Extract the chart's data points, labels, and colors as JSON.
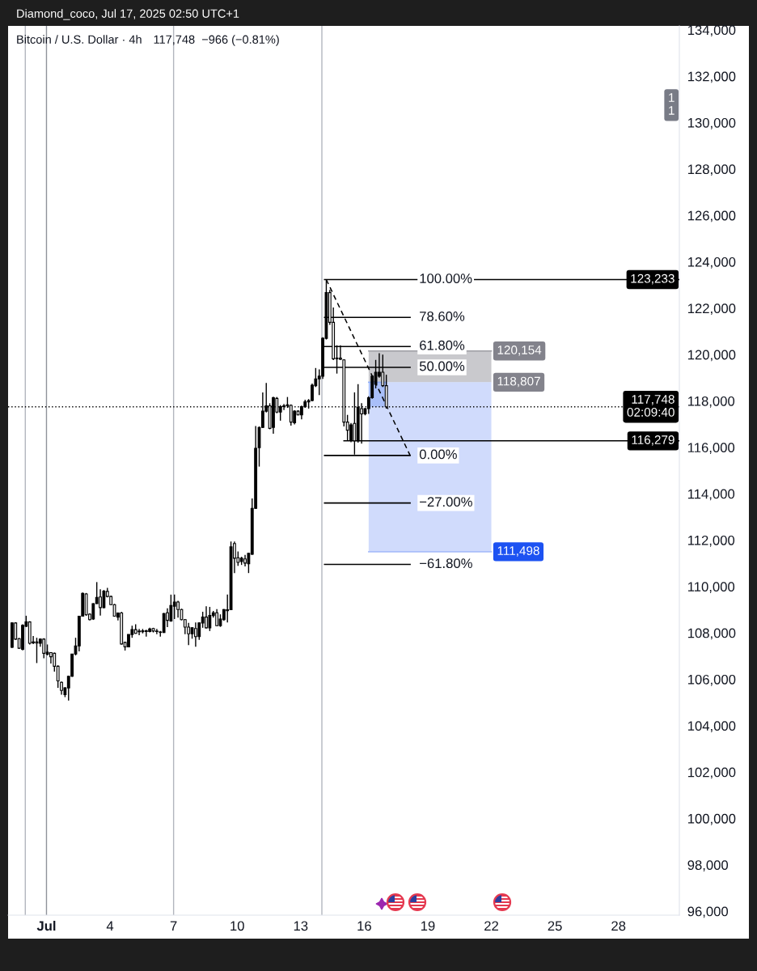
{
  "chart_data": {
    "type": "candlestick",
    "title": "Bitcoin / U.S. Dollar · 4h",
    "subtitle": "117,748  −966 (−0.81%)",
    "x": [
      "2025-06-29T09:00",
      "2025-06-29T13:00",
      "2025-06-29T17:00",
      "2025-06-29T21:00",
      "2025-06-30T01:00",
      "2025-06-30T05:00",
      "2025-06-30T09:00",
      "2025-06-30T13:00",
      "2025-06-30T17:00",
      "2025-06-30T21:00",
      "2025-07-01T01:00",
      "2025-07-01T05:00",
      "2025-07-01T09:00",
      "2025-07-01T13:00",
      "2025-07-01T17:00",
      "2025-07-01T21:00",
      "2025-07-02T01:00",
      "2025-07-02T05:00",
      "2025-07-02T09:00",
      "2025-07-02T13:00",
      "2025-07-02T17:00",
      "2025-07-02T21:00",
      "2025-07-03T01:00",
      "2025-07-03T05:00",
      "2025-07-03T09:00",
      "2025-07-03T13:00",
      "2025-07-03T17:00",
      "2025-07-03T21:00",
      "2025-07-04T01:00",
      "2025-07-04T05:00",
      "2025-07-04T09:00",
      "2025-07-04T13:00",
      "2025-07-04T17:00",
      "2025-07-04T21:00",
      "2025-07-05T01:00",
      "2025-07-05T05:00",
      "2025-07-05T09:00",
      "2025-07-05T13:00",
      "2025-07-05T17:00",
      "2025-07-05T21:00",
      "2025-07-06T01:00",
      "2025-07-06T05:00",
      "2025-07-06T09:00",
      "2025-07-06T13:00",
      "2025-07-06T17:00",
      "2025-07-06T21:00",
      "2025-07-07T01:00",
      "2025-07-07T05:00",
      "2025-07-07T09:00",
      "2025-07-07T13:00",
      "2025-07-07T17:00",
      "2025-07-07T21:00",
      "2025-07-08T01:00",
      "2025-07-08T05:00",
      "2025-07-08T09:00",
      "2025-07-08T13:00",
      "2025-07-08T17:00",
      "2025-07-08T21:00",
      "2025-07-09T01:00",
      "2025-07-09T05:00",
      "2025-07-09T09:00",
      "2025-07-09T13:00",
      "2025-07-09T17:00",
      "2025-07-09T21:00",
      "2025-07-10T01:00",
      "2025-07-10T05:00",
      "2025-07-10T09:00",
      "2025-07-10T13:00",
      "2025-07-10T17:00",
      "2025-07-10T21:00",
      "2025-07-11T01:00",
      "2025-07-11T05:00",
      "2025-07-11T09:00",
      "2025-07-11T13:00",
      "2025-07-11T17:00",
      "2025-07-11T21:00",
      "2025-07-12T01:00",
      "2025-07-12T05:00",
      "2025-07-12T09:00",
      "2025-07-12T13:00",
      "2025-07-12T17:00",
      "2025-07-12T21:00",
      "2025-07-13T01:00",
      "2025-07-13T05:00",
      "2025-07-13T09:00",
      "2025-07-13T13:00",
      "2025-07-13T17:00",
      "2025-07-13T21:00",
      "2025-07-14T01:00",
      "2025-07-14T05:00",
      "2025-07-14T09:00",
      "2025-07-14T13:00",
      "2025-07-14T17:00",
      "2025-07-14T21:00",
      "2025-07-15T01:00",
      "2025-07-15T05:00",
      "2025-07-15T09:00",
      "2025-07-15T13:00",
      "2025-07-15T17:00",
      "2025-07-15T21:00",
      "2025-07-16T01:00",
      "2025-07-16T05:00",
      "2025-07-16T09:00",
      "2025-07-16T13:00",
      "2025-07-16T17:00",
      "2025-07-16T21:00",
      "2025-07-17T01:00"
    ],
    "ohlc": [
      [
        107380,
        108450,
        107350,
        108430
      ],
      [
        108430,
        108460,
        107700,
        107730
      ],
      [
        107750,
        107780,
        107320,
        107340
      ],
      [
        107290,
        108370,
        107250,
        108330
      ],
      [
        108290,
        108740,
        108250,
        108470
      ],
      [
        108470,
        108500,
        107500,
        107550
      ],
      [
        107570,
        107870,
        107520,
        107610
      ],
      [
        107610,
        107790,
        106700,
        107560
      ],
      [
        107550,
        107760,
        107400,
        107730
      ],
      [
        107730,
        107770,
        106910,
        107120
      ],
      [
        107080,
        107500,
        107030,
        107170
      ],
      [
        107150,
        107170,
        106680,
        106970
      ],
      [
        107120,
        107150,
        106330,
        106560
      ],
      [
        106560,
        106600,
        105630,
        105930
      ],
      [
        105870,
        105900,
        105340,
        105520
      ],
      [
        105340,
        105660,
        105230,
        105630
      ],
      [
        105630,
        106160,
        105080,
        106130
      ],
      [
        106130,
        107100,
        106100,
        107090
      ],
      [
        107090,
        107790,
        107030,
        107440
      ],
      [
        107440,
        108740,
        107200,
        108720
      ],
      [
        108720,
        109740,
        108700,
        109700
      ],
      [
        109680,
        109720,
        108740,
        108780
      ],
      [
        108810,
        108840,
        108540,
        108570
      ],
      [
        108600,
        109280,
        108560,
        109260
      ],
      [
        109260,
        110190,
        109250,
        109530
      ],
      [
        109550,
        109880,
        108750,
        109090
      ],
      [
        109090,
        109850,
        109060,
        109800
      ],
      [
        109790,
        109940,
        109530,
        109570
      ],
      [
        109570,
        109600,
        109200,
        109220
      ],
      [
        109220,
        109250,
        108700,
        108720
      ],
      [
        108680,
        108880,
        108540,
        108860
      ],
      [
        108860,
        108900,
        107500,
        107520
      ],
      [
        107590,
        107620,
        107240,
        107400
      ],
      [
        107400,
        107930,
        107380,
        107930
      ],
      [
        107930,
        108310,
        107790,
        108140
      ],
      [
        108140,
        108370,
        107960,
        107980
      ],
      [
        108080,
        108170,
        107900,
        108050
      ],
      [
        108050,
        108170,
        107980,
        108090
      ],
      [
        108090,
        108140,
        107840,
        108060
      ],
      [
        108060,
        108220,
        108020,
        108170
      ],
      [
        108190,
        108220,
        108020,
        108080
      ],
      [
        108080,
        108170,
        107940,
        108060
      ],
      [
        108040,
        108080,
        107840,
        108020
      ],
      [
        108020,
        108860,
        108000,
        108830
      ],
      [
        108870,
        109060,
        108250,
        108540
      ],
      [
        108510,
        109650,
        108480,
        109180
      ],
      [
        109150,
        109650,
        108600,
        109330
      ],
      [
        109330,
        109380,
        108660,
        109010
      ],
      [
        109010,
        109040,
        108540,
        108570
      ],
      [
        108570,
        108600,
        107940,
        108250
      ],
      [
        108250,
        108430,
        107470,
        107960
      ],
      [
        107960,
        108250,
        107750,
        108220
      ],
      [
        108190,
        108450,
        107400,
        107840
      ],
      [
        107840,
        108450,
        107700,
        108430
      ],
      [
        108430,
        108910,
        108220,
        108680
      ],
      [
        108680,
        109150,
        108190,
        108220
      ],
      [
        108220,
        109120,
        108080,
        108750
      ],
      [
        108750,
        108950,
        108660,
        108870
      ],
      [
        108870,
        109030,
        108290,
        108310
      ],
      [
        108310,
        108800,
        108260,
        108600
      ],
      [
        108570,
        109030,
        108520,
        109010
      ],
      [
        108960,
        109650,
        108450,
        109000
      ],
      [
        109000,
        111940,
        108980,
        111710
      ],
      [
        111850,
        111940,
        110580,
        111220
      ],
      [
        111240,
        111510,
        110890,
        111040
      ],
      [
        111080,
        111280,
        110930,
        111220
      ],
      [
        111190,
        111360,
        110870,
        111010
      ],
      [
        110980,
        111450,
        110580,
        111430
      ],
      [
        111390,
        113800,
        111360,
        113370
      ],
      [
        113370,
        116920,
        113340,
        115960
      ],
      [
        115990,
        116900,
        115170,
        116860
      ],
      [
        116860,
        118370,
        116830,
        117560
      ],
      [
        117560,
        118780,
        117500,
        117790
      ],
      [
        117790,
        117900,
        116780,
        116820
      ],
      [
        116860,
        118180,
        116590,
        118140
      ],
      [
        118110,
        118170,
        117470,
        117520
      ],
      [
        117520,
        117820,
        117150,
        117750
      ],
      [
        117760,
        117870,
        117610,
        117790
      ],
      [
        117790,
        118170,
        117700,
        117830
      ],
      [
        117810,
        117850,
        116940,
        117090
      ],
      [
        117060,
        117600,
        116990,
        117560
      ],
      [
        117560,
        117600,
        117380,
        117400
      ],
      [
        117400,
        117800,
        117210,
        117750
      ],
      [
        117750,
        118050,
        117700,
        117960
      ],
      [
        117960,
        118080,
        117670,
        118020
      ],
      [
        118020,
        118750,
        117980,
        118680
      ],
      [
        118660,
        119420,
        118600,
        118950
      ],
      [
        118950,
        119360,
        118250,
        119070
      ],
      [
        119070,
        120750,
        118950,
        120700
      ],
      [
        120700,
        123233,
        120650,
        122670
      ],
      [
        122670,
        122790,
        121280,
        121390
      ],
      [
        121390,
        122030,
        119760,
        119820
      ],
      [
        119820,
        120400,
        119180,
        119850
      ],
      [
        119850,
        120400,
        119760,
        119800
      ],
      [
        119770,
        119800,
        116900,
        117090
      ],
      [
        117090,
        117400,
        116280,
        116740
      ],
      [
        116330,
        117050,
        116220,
        116970
      ],
      [
        117030,
        118370,
        115690,
        116280
      ],
      [
        116280,
        118720,
        116200,
        117730
      ],
      [
        117670,
        117900,
        116160,
        117440
      ],
      [
        117440,
        117700,
        117380,
        117670
      ],
      [
        117670,
        118200,
        117440,
        118140
      ],
      [
        118140,
        119100,
        118100,
        119070
      ],
      [
        118720,
        119770,
        118540,
        119240
      ],
      [
        119070,
        120060,
        119000,
        119240
      ],
      [
        119240,
        120000,
        118600,
        118660
      ],
      [
        118660,
        119130,
        117670,
        117748
      ]
    ],
    "series": [
      {
        "type": "line",
        "x": [
          "2025-07-16T05:00",
          "2025-07-22T00:00"
        ],
        "values": [
          120154,
          120154
        ],
        "lower": [
          118807,
          118807
        ],
        "upper": [
          120154,
          120154
        ],
        "color": "#9d9da4"
      },
      {
        "type": "line",
        "x": [
          "2025-07-16T05:00",
          "2025-07-22T00:00"
        ],
        "values": [
          111498,
          111498
        ],
        "lower": [
          111498,
          111498
        ],
        "upper": [
          118807,
          118807
        ],
        "color": "#aabefa"
      },
      {
        "type": "line",
        "x": [
          "2025-07-16T05:00",
          "2025-07-17T01:00"
        ],
        "values": [
          118807,
          118807
        ],
        "lower": [
          117748,
          117748
        ],
        "upper": [
          118807,
          118807
        ],
        "color": "#89a8f5"
      },
      {
        "type": "line",
        "x": [
          "2025-07-14T03:00",
          "2025-07-30T21:00"
        ],
        "values": [
          123233,
          123233
        ],
        "color": "#000000"
      },
      {
        "type": "line",
        "x": [
          "2025-07-14T03:00",
          "2025-07-18T04:00"
        ],
        "values": [
          121600,
          121600
        ],
        "color": "#000000"
      },
      {
        "type": "line",
        "x": [
          "2025-07-14T03:00",
          "2025-07-18T04:00"
        ],
        "values": [
          120350,
          120350
        ],
        "color": "#000000"
      },
      {
        "type": "line",
        "x": [
          "2025-07-14T03:00",
          "2025-07-18T04:00"
        ],
        "values": [
          119450,
          119450
        ],
        "color": "#000000"
      },
      {
        "type": "line",
        "x": [
          "2025-07-14T03:00",
          "2025-07-18T04:00"
        ],
        "values": [
          115650,
          115650
        ],
        "color": "#000000"
      },
      {
        "type": "line",
        "x": [
          "2025-07-14T03:00",
          "2025-07-18T04:00"
        ],
        "values": [
          113600,
          113600
        ],
        "color": "#000000"
      },
      {
        "type": "line",
        "x": [
          "2025-07-14T03:00",
          "2025-07-18T04:00"
        ],
        "values": [
          110950,
          110950
        ],
        "color": "#000000"
      },
      {
        "type": "line",
        "x": [
          "2025-07-15T01:00",
          "2025-07-30T21:00"
        ],
        "values": [
          116279,
          116279
        ],
        "color": "#000000"
      },
      {
        "type": "line",
        "x": [
          "2025-07-14T05:00",
          "2025-07-18T04:00"
        ],
        "values": [
          123233,
          115650
        ],
        "color": "#000000",
        "line_style": "dashed"
      }
    ],
    "ref_lines": [
      {
        "axis": "x",
        "value": "2025-06-30",
        "color": "#b2b5be"
      },
      {
        "axis": "x",
        "value": "2025-07-01",
        "color": "#8f929b"
      },
      {
        "axis": "x",
        "value": "2025-07-07",
        "color": "#b2b5be"
      },
      {
        "axis": "x",
        "value": "2025-07-14",
        "color": "#b2b5be"
      },
      {
        "axis": "y",
        "value": 117748,
        "label": "117,748\n02:09:40",
        "color": "#000000",
        "line_style": "dotted"
      }
    ],
    "annotations": [
      "Diamond_coco, Jul 17, 2025 02:50 UTC+1",
      {
        "text": "100.00%",
        "x": "2025-07-18T04:00",
        "y": 123233
      },
      {
        "text": "78.60%",
        "x": "2025-07-18T04:00",
        "y": 121600
      },
      {
        "text": "61.80%",
        "x": "2025-07-18T04:00",
        "y": 120350
      },
      {
        "text": "50.00%",
        "x": "2025-07-18T04:00",
        "y": 119450
      },
      {
        "text": "0.00%",
        "x": "2025-07-18T04:00",
        "y": 115650
      },
      {
        "text": "−27.00%",
        "x": "2025-07-18T04:00",
        "y": 113600
      },
      {
        "text": "−61.80%",
        "x": "2025-07-18T04:00",
        "y": 110950
      },
      {
        "text": "123,233",
        "y": 123233
      },
      {
        "text": "120,154",
        "x": "2025-07-22T00:00",
        "y": 120154
      },
      {
        "text": "118,807",
        "x": "2025-07-22T00:00",
        "y": 118807
      },
      {
        "text": "116,279",
        "y": 116279
      },
      {
        "text": "111,498",
        "x": "2025-07-22T00:00",
        "y": 111498
      },
      {
        "text": "1\n1"
      }
    ],
    "xlim": [
      "2025-06-29T04:30",
      "2025-07-30T21:00"
    ],
    "xticks": [
      {
        "value": "2025-07-01",
        "label": "Jul"
      },
      {
        "value": "2025-07-04",
        "label": "4"
      },
      {
        "value": "2025-07-07",
        "label": "7"
      },
      {
        "value": "2025-07-10",
        "label": "10"
      },
      {
        "value": "2025-07-13",
        "label": "13"
      },
      {
        "value": "2025-07-16",
        "label": "16"
      },
      {
        "value": "2025-07-19",
        "label": "19"
      },
      {
        "value": "2025-07-22",
        "label": "22"
      },
      {
        "value": "2025-07-25",
        "label": "25"
      },
      {
        "value": "2025-07-28",
        "label": "28"
      }
    ],
    "ylim": [
      95830,
      134170
    ],
    "yticks": [
      {
        "value": 96000,
        "label": "96,000"
      },
      {
        "value": 98000,
        "label": "98,000"
      },
      {
        "value": 100000,
        "label": "100,000"
      },
      {
        "value": 102000,
        "label": "102,000"
      },
      {
        "value": 104000,
        "label": "104,000"
      },
      {
        "value": 106000,
        "label": "106,000"
      },
      {
        "value": 108000,
        "label": "108,000"
      },
      {
        "value": 110000,
        "label": "110,000"
      },
      {
        "value": 112000,
        "label": "112,000"
      },
      {
        "value": 114000,
        "label": "114,000"
      },
      {
        "value": 116000,
        "label": "116,000"
      },
      {
        "value": 118000,
        "label": "118,000"
      },
      {
        "value": 120000,
        "label": "120,000"
      },
      {
        "value": 122000,
        "label": "122,000"
      },
      {
        "value": 124000,
        "label": "124,000"
      },
      {
        "value": 126000,
        "label": "126,000"
      },
      {
        "value": 128000,
        "label": "128,000"
      },
      {
        "value": 130000,
        "label": "130,000"
      },
      {
        "value": 132000,
        "label": "132,000"
      },
      {
        "value": 134000,
        "label": "134,000"
      }
    ]
  }
}
